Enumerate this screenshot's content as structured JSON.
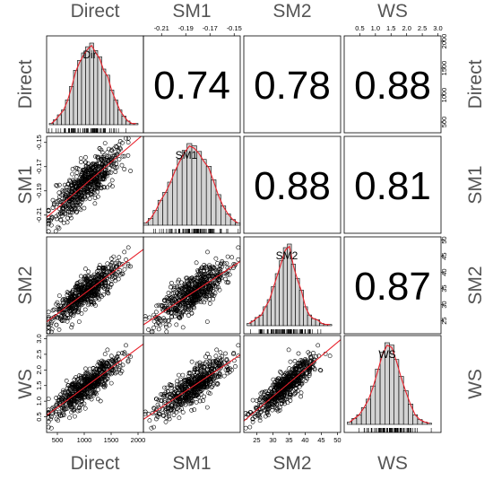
{
  "chart_data": {
    "type": "scatter",
    "title": "",
    "variables": [
      "Direct",
      "SM1",
      "SM2",
      "WS"
    ],
    "diagonal_labels": [
      "Dir",
      "SM1",
      "SM2",
      "WS"
    ],
    "ranges": [
      [
        300,
        2100
      ],
      [
        -0.225,
        -0.145
      ],
      [
        21,
        51
      ],
      [
        0,
        3.1
      ]
    ],
    "top_axis_ticks": {
      "SM1": [
        "-0.21",
        "-0.19",
        "-0.17",
        "-0.15"
      ],
      "WS": [
        "0.5",
        "1.0",
        "1.5",
        "2.0",
        "2.5",
        "3.0"
      ]
    },
    "right_axis_ticks": {
      "Direct": [
        "500",
        "1000",
        "1500",
        "2000"
      ],
      "SM2": [
        "25",
        "30",
        "35",
        "40",
        "45",
        "50"
      ]
    },
    "bottom_axis_ticks": {
      "Direct": [
        "500",
        "1000",
        "1500",
        "2000"
      ],
      "SM2": [
        "25",
        "30",
        "35",
        "40",
        "45",
        "50"
      ]
    },
    "left_axis_ticks": {
      "SM1": [
        "-0.15",
        "-0.17",
        "-0.19",
        "-0.21"
      ],
      "WS": [
        "0.5",
        "1.0",
        "1.5",
        "2.0",
        "2.5",
        "3.0"
      ]
    },
    "correlations": [
      {
        "row": "Direct",
        "col": "SM1",
        "value": "0.74"
      },
      {
        "row": "Direct",
        "col": "SM2",
        "value": "0.78"
      },
      {
        "row": "Direct",
        "col": "WS",
        "value": "0.88"
      },
      {
        "row": "SM1",
        "col": "SM2",
        "value": "0.88"
      },
      {
        "row": "SM1",
        "col": "WS",
        "value": "0.81"
      },
      {
        "row": "SM2",
        "col": "WS",
        "value": "0.87"
      }
    ],
    "histograms": [
      {
        "var": "Direct",
        "bin_start": 350,
        "bin_width": 75,
        "counts": [
          1,
          4,
          8,
          12,
          20,
          31,
          44,
          52,
          58,
          63,
          66,
          60,
          55,
          45,
          40,
          28,
          20,
          12,
          7,
          3,
          1,
          1
        ]
      },
      {
        "var": "SM1",
        "bin_start": -0.225,
        "bin_width": 0.004,
        "counts": [
          2,
          6,
          13,
          22,
          29,
          38,
          49,
          58,
          66,
          72,
          70,
          65,
          58,
          52,
          40,
          27,
          17,
          10,
          5,
          2
        ]
      },
      {
        "var": "SM2",
        "bin_start": 22,
        "bin_width": 1.25,
        "counts": [
          2,
          4,
          7,
          9,
          16,
          22,
          33,
          44,
          55,
          66,
          69,
          52,
          40,
          30,
          16,
          9,
          6,
          5,
          2,
          1,
          1
        ]
      },
      {
        "var": "WS",
        "bin_start": 0.1,
        "bin_width": 0.15,
        "counts": [
          2,
          5,
          8,
          14,
          21,
          32,
          46,
          60,
          68,
          66,
          54,
          40,
          28,
          17,
          8,
          4,
          2,
          1
        ]
      }
    ],
    "n_points": 600,
    "line_color": "#e8202a",
    "bar_fill": "#d3d3d3",
    "point_color": "#000000"
  }
}
